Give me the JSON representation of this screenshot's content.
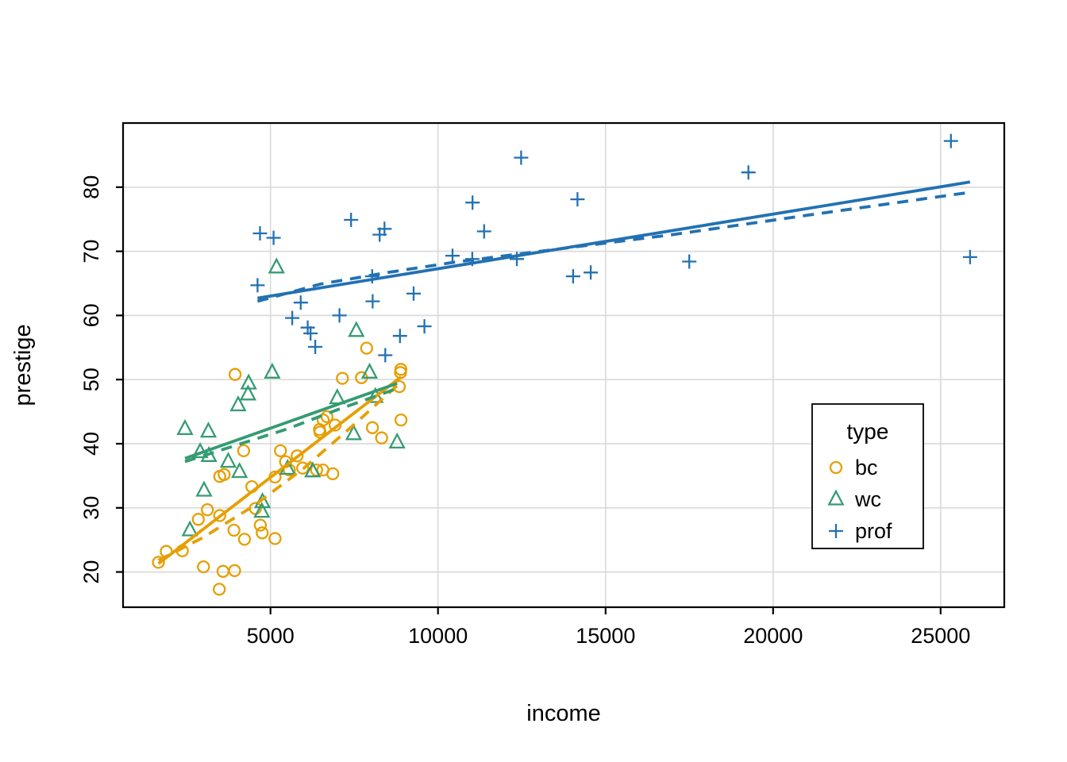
{
  "chart_data": {
    "type": "scatter",
    "title": "",
    "xlabel": "income",
    "ylabel": "prestige",
    "xlim": [
      600,
      26900
    ],
    "ylim": [
      14.5,
      90
    ],
    "x_ticks": [
      5000,
      10000,
      15000,
      20000,
      25000
    ],
    "y_ticks": [
      20,
      30,
      40,
      50,
      60,
      70,
      80
    ],
    "grid": true,
    "legend": {
      "title": "type",
      "position": "right-middle",
      "labels": [
        "bc",
        "wc",
        "prof"
      ]
    },
    "series": [
      {
        "name": "bc",
        "symbol": "circle",
        "color": "#E69F00",
        "points": [
          [
            3485,
            34.9
          ],
          [
            2370,
            23.3
          ],
          [
            8895,
            43.7
          ],
          [
            8891,
            51.6
          ],
          [
            3116,
            29.7
          ],
          [
            3930,
            20.2
          ],
          [
            7869,
            54.9
          ],
          [
            3000,
            20.8
          ],
          [
            3472,
            17.3
          ],
          [
            3582,
            20.1
          ],
          [
            1656,
            21.5
          ],
          [
            6860,
            35.3
          ],
          [
            5959,
            36.2
          ],
          [
            4549,
            29.9
          ],
          [
            6928,
            42.9
          ],
          [
            3910,
            26.5
          ],
          [
            8845,
            48.9
          ],
          [
            5562,
            35.9
          ],
          [
            4224,
            25.1
          ],
          [
            4753,
            26.1
          ],
          [
            4443,
            33.3
          ],
          [
            3485,
            28.8
          ],
          [
            8043,
            42.5
          ],
          [
            6686,
            44.2
          ],
          [
            6565,
            35.9
          ],
          [
            6477,
            41.8
          ],
          [
            6377,
            35.9
          ],
          [
            6573,
            43.7
          ],
          [
            3942,
            50.8
          ],
          [
            5449,
            37.2
          ],
          [
            2847,
            28.2
          ],
          [
            5795,
            38.1
          ],
          [
            7716,
            50.3
          ],
          [
            4696,
            27.3
          ],
          [
            8316,
            40.9
          ],
          [
            7147,
            50.2
          ],
          [
            8880,
            51.1
          ],
          [
            5299,
            38.9
          ],
          [
            5134,
            25.2
          ],
          [
            5134,
            34.8
          ],
          [
            1890,
            23.2
          ],
          [
            4199,
            38.9
          ],
          [
            6462,
            42.2
          ],
          [
            3617,
            35.2
          ]
        ],
        "fit_solid": [
          [
            1656,
            21.3
          ],
          [
            8895,
            50.4
          ]
        ],
        "fit_dashed": [
          [
            1656,
            21.8
          ],
          [
            3000,
            25.4
          ],
          [
            4500,
            30.3
          ],
          [
            6000,
            36.2
          ],
          [
            7500,
            43.0
          ],
          [
            8895,
            49.6
          ]
        ]
      },
      {
        "name": "wc",
        "symbol": "triangle",
        "color": "#359B73",
        "points": [
          [
            5180,
            67.5
          ],
          [
            7562,
            57.6
          ],
          [
            4036,
            46
          ],
          [
            3148,
            41.9
          ],
          [
            4348,
            49.4
          ],
          [
            2448,
            42.3
          ],
          [
            4330,
            47.7
          ],
          [
            4761,
            30.9
          ],
          [
            3016,
            32.7
          ],
          [
            2901,
            38.7
          ],
          [
            5511,
            36.1
          ],
          [
            3739,
            37.2
          ],
          [
            3161,
            38.1
          ],
          [
            4741,
            29.4
          ],
          [
            5052,
            51.1
          ],
          [
            6259,
            35.7
          ],
          [
            4075,
            35.6
          ],
          [
            7482,
            41.5
          ],
          [
            8780,
            40.2
          ],
          [
            2594,
            26.5
          ],
          [
            8131,
            47.3
          ],
          [
            6992,
            47.1
          ],
          [
            7956,
            51.1
          ]
        ],
        "fit_solid": [
          [
            2448,
            37.7
          ],
          [
            8780,
            49.4
          ]
        ],
        "fit_dashed": [
          [
            2448,
            37.2
          ],
          [
            4000,
            39.8
          ],
          [
            5500,
            42.3
          ],
          [
            7000,
            45.3
          ],
          [
            8780,
            48.6
          ]
        ]
      },
      {
        "name": "prof",
        "symbol": "plus",
        "color": "#2271B2",
        "points": [
          [
            12351,
            68.8
          ],
          [
            25879,
            69.1
          ],
          [
            9271,
            63.4
          ],
          [
            8865,
            56.8
          ],
          [
            8403,
            73.5
          ],
          [
            11030,
            77.6
          ],
          [
            8258,
            72.6
          ],
          [
            14163,
            78.1
          ],
          [
            11377,
            73.1
          ],
          [
            11023,
            68.8
          ],
          [
            5902,
            62
          ],
          [
            7059,
            60
          ],
          [
            8425,
            53.8
          ],
          [
            8049,
            62.2
          ],
          [
            7405,
            74.9
          ],
          [
            6336,
            55.1
          ],
          [
            19263,
            82.3
          ],
          [
            6112,
            58.1
          ],
          [
            9593,
            58.3
          ],
          [
            4686,
            72.8
          ],
          [
            12480,
            84.6
          ],
          [
            5648,
            59.6
          ],
          [
            8034,
            66.1
          ],
          [
            25308,
            87.2
          ],
          [
            14558,
            66.7
          ],
          [
            17498,
            68.4
          ],
          [
            4614,
            64.7
          ],
          [
            5092,
            72.1
          ],
          [
            10432,
            69.3
          ],
          [
            6197,
            57.2
          ],
          [
            14032,
            66.1
          ]
        ],
        "fit_solid": [
          [
            4614,
            62.7
          ],
          [
            25879,
            80.8
          ]
        ],
        "fit_dashed": [
          [
            4614,
            62.2
          ],
          [
            6500,
            64.9
          ],
          [
            8500,
            66.7
          ],
          [
            10500,
            68.3
          ],
          [
            13500,
            70.3
          ],
          [
            17000,
            72.6
          ],
          [
            21000,
            75.6
          ],
          [
            25879,
            79.2
          ]
        ]
      }
    ]
  }
}
